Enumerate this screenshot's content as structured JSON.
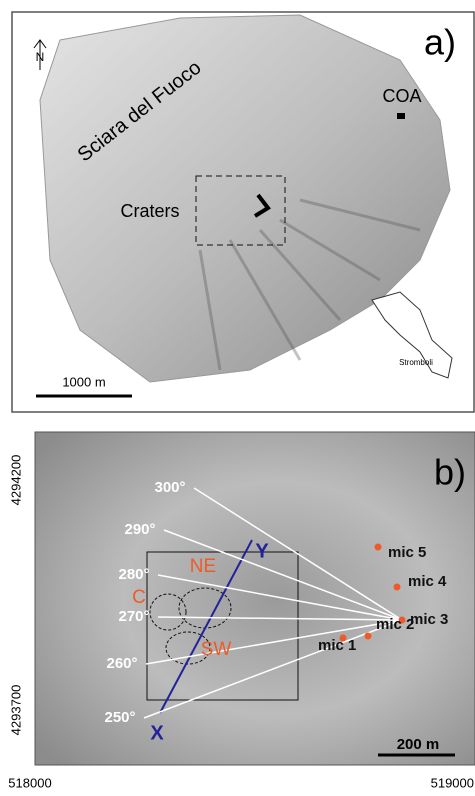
{
  "panel_a": {
    "label": "a)",
    "north": "N",
    "coast_label": "Sciara del Fuoco",
    "station": "COA",
    "craters": "Craters",
    "scale": "1000 m",
    "inset_label": "Stromboli"
  },
  "panel_b": {
    "label": "b)",
    "bearings": [
      "300°",
      "290°",
      "280°",
      "270°",
      "260°",
      "250°"
    ],
    "profile_end": "Y",
    "profile_start": "X",
    "craters": [
      "NE",
      "C",
      "SW"
    ],
    "microphones": [
      "mic 5",
      "mic 4",
      "mic 3",
      "mic 2",
      "mic 1"
    ],
    "scale": "200 m",
    "northing": [
      "4294200",
      "4293700"
    ],
    "easting": [
      "518000",
      "519000"
    ]
  }
}
